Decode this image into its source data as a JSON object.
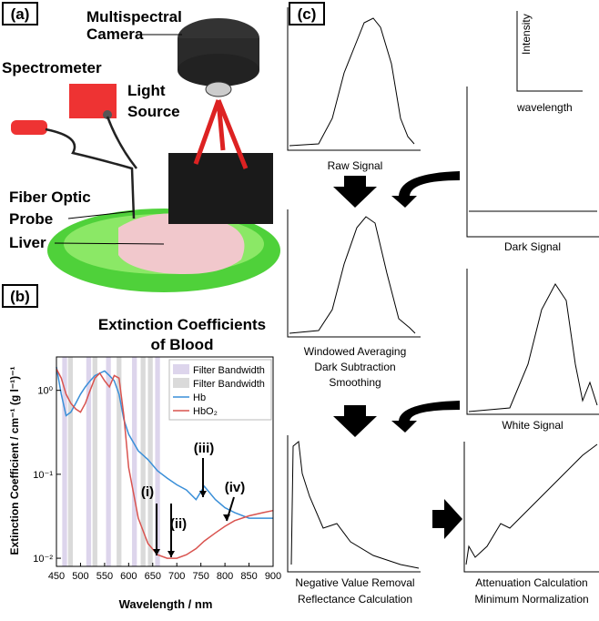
{
  "panel_a": {
    "label": "(a)",
    "camera": [
      "Multispectral",
      "Camera"
    ],
    "spectrometer": "Spectrometer",
    "light_source": [
      "Light",
      "Source"
    ],
    "probe": [
      "Fiber Optic",
      "Probe"
    ],
    "liver": "Liver"
  },
  "panel_b": {
    "label": "(b)"
  },
  "chart_data": {
    "type": "line",
    "title": [
      "Extinction Coefficients",
      "of Blood"
    ],
    "x_label": "Wavelength / nm",
    "y_label": "Extinction Coefficient / cm⁻¹ (g l⁻¹)⁻¹",
    "x": [
      450,
      460,
      470,
      480,
      490,
      500,
      510,
      520,
      530,
      540,
      550,
      560,
      570,
      580,
      590,
      600,
      620,
      640,
      660,
      680,
      700,
      720,
      740,
      757,
      780,
      800,
      820,
      850,
      880,
      900
    ],
    "series": [
      {
        "name": "Hb",
        "color": "#3a8fd8",
        "values": [
          1.9,
          0.9,
          0.5,
          0.55,
          0.7,
          0.9,
          1.1,
          1.3,
          1.5,
          1.6,
          1.7,
          1.5,
          1.3,
          0.9,
          0.45,
          0.3,
          0.19,
          0.15,
          0.11,
          0.09,
          0.075,
          0.065,
          0.05,
          0.072,
          0.05,
          0.04,
          0.035,
          0.03,
          0.03,
          0.03
        ]
      },
      {
        "name": "HbO₂",
        "color": "#d9534f",
        "values": [
          1.8,
          1.4,
          0.9,
          0.7,
          0.6,
          0.55,
          0.7,
          1.0,
          1.4,
          1.6,
          1.3,
          1.1,
          1.5,
          1.4,
          0.5,
          0.12,
          0.03,
          0.015,
          0.011,
          0.01,
          0.01,
          0.011,
          0.013,
          0.016,
          0.02,
          0.024,
          0.028,
          0.032,
          0.035,
          0.037
        ]
      }
    ],
    "filters": [
      {
        "name": "Filter Bandwidth",
        "color": "#ddd5ec",
        "ranges": [
          [
            462,
            472
          ],
          [
            512,
            522
          ],
          [
            553,
            563
          ],
          [
            607,
            617
          ],
          [
            655,
            665
          ]
        ]
      },
      {
        "name": "Filter Bandwidth",
        "color": "#dadada",
        "ranges": [
          [
            474,
            484
          ],
          [
            525,
            535
          ],
          [
            575,
            585
          ],
          [
            625,
            635
          ],
          [
            640,
            650
          ]
        ]
      }
    ],
    "annotations": [
      "(i)",
      "(ii)",
      "(iii)",
      "(iv)"
    ],
    "xlim": [
      450,
      900
    ],
    "xticks": [
      450,
      500,
      550,
      600,
      650,
      700,
      750,
      800,
      850,
      900
    ],
    "ylim": [
      0.008,
      2.5
    ],
    "log_y": true,
    "yticks": [
      {
        "value": 0.01,
        "label": "10⁻²"
      },
      {
        "value": 0.1,
        "label": "10⁻¹"
      },
      {
        "value": 1,
        "label": "10⁰"
      }
    ]
  },
  "panel_c": {
    "label": "(c)",
    "intensity": "Intensity",
    "wavelength": "wavelength",
    "raw": "Raw Signal",
    "dark": "Dark Signal",
    "processed": [
      "Windowed Averaging",
      "Dark Subtraction",
      "Smoothing"
    ],
    "white": "White Signal",
    "reflectance": [
      "Negative Value Removal",
      "Reflectance Calculation"
    ],
    "attenuation": [
      "Attenuation Calculation",
      "Minimum Normalization"
    ]
  }
}
